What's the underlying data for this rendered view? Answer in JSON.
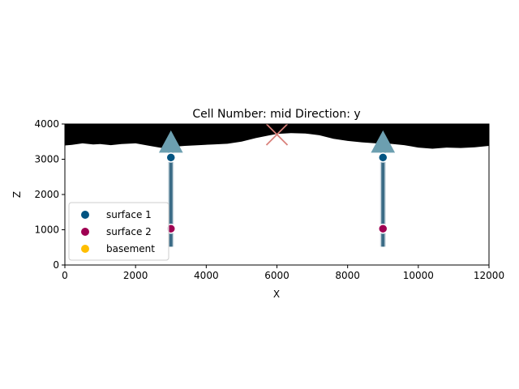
{
  "chart_data": {
    "type": "scatter",
    "title": "Cell Number: mid Direction: y",
    "xlabel": "X",
    "ylabel": "Z",
    "xlim": [
      0,
      12000
    ],
    "ylim": [
      0,
      4000
    ],
    "xticks": [
      "0",
      "2000",
      "4000",
      "6000",
      "8000",
      "10000",
      "12000"
    ],
    "yticks": [
      "0",
      "1000",
      "2000",
      "3000",
      "4000"
    ],
    "legend_position": "lower-left",
    "grid": false,
    "series": [
      {
        "name": "surface 1",
        "color": "#015482",
        "points": [
          [
            3000,
            3050
          ],
          [
            9000,
            3050
          ]
        ]
      },
      {
        "name": "surface 2",
        "color": "#9f0052",
        "points": [
          [
            3000,
            1030
          ],
          [
            9000,
            1030
          ]
        ]
      },
      {
        "name": "basement",
        "color": "#ffbe00",
        "points": []
      }
    ],
    "wells": [
      {
        "x": 3000,
        "z_top": 3380,
        "z_bottom": 520
      },
      {
        "x": 9000,
        "z_top": 3380,
        "z_bottom": 520
      }
    ],
    "orientation_markers": [
      {
        "x": 3000,
        "z": 3450
      },
      {
        "x": 9000,
        "z": 3450
      }
    ],
    "cross_marker": {
      "x": 6000,
      "z": 3700
    },
    "topography": {
      "x": [
        0,
        200,
        500,
        800,
        1000,
        1300,
        1600,
        2000,
        2400,
        2800,
        3000,
        3400,
        3800,
        4200,
        4600,
        5000,
        5400,
        5800,
        6000,
        6400,
        6800,
        7200,
        7600,
        8000,
        8400,
        8800,
        9200,
        9600,
        10000,
        10400,
        10800,
        11200,
        11600,
        12000
      ],
      "z": [
        3390,
        3410,
        3450,
        3420,
        3430,
        3400,
        3430,
        3450,
        3380,
        3310,
        3350,
        3380,
        3400,
        3420,
        3440,
        3500,
        3600,
        3680,
        3720,
        3740,
        3730,
        3680,
        3580,
        3520,
        3480,
        3450,
        3440,
        3400,
        3330,
        3300,
        3330,
        3320,
        3340,
        3380
      ]
    }
  }
}
